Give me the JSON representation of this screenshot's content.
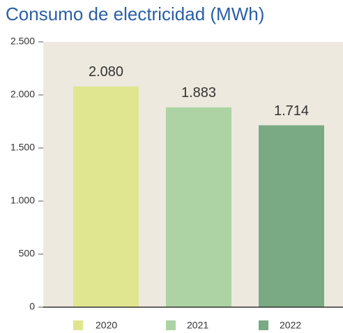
{
  "chart_data": {
    "type": "bar",
    "title": "Consumo de electricidad (MWh)",
    "categories": [
      "2020",
      "2021",
      "2022"
    ],
    "values": [
      2080,
      1883,
      1714
    ],
    "value_labels": [
      "2.080",
      "1.883",
      "1.714"
    ],
    "colors": [
      "#dfe68f",
      "#add3a4",
      "#7aaa84"
    ],
    "ylim": [
      0,
      2500
    ],
    "yticks": [
      0,
      500,
      {
        "value": 1000,
        "label": "1.000"
      },
      {
        "value": 1500,
        "label": "1.500"
      },
      {
        "value": 2000,
        "label": "2.000"
      },
      {
        "value": 2500,
        "label": "2.500"
      }
    ],
    "legend": "bottom"
  }
}
